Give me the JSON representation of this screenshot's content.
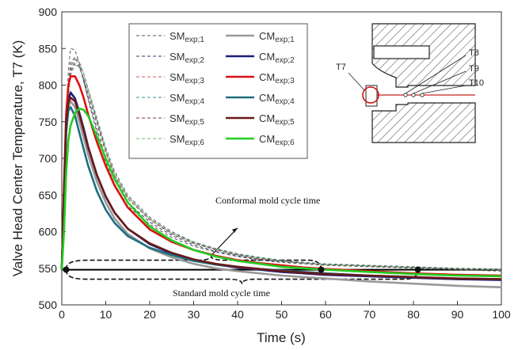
{
  "chart_data": {
    "type": "line",
    "title": "",
    "xlabel": "Time (s)",
    "ylabel": "Valve Head Center Temperature, T7 (K)",
    "xlim": [
      0,
      100
    ],
    "ylim": [
      500,
      900
    ],
    "xticks": [
      0,
      10,
      20,
      30,
      40,
      50,
      60,
      70,
      80,
      90,
      100
    ],
    "yticks": [
      500,
      550,
      600,
      650,
      700,
      750,
      800,
      850,
      900
    ],
    "grid": false,
    "legend_position": "top-left",
    "series": [
      {
        "name": "SM",
        "sub": "exp;1",
        "color": "#555555",
        "dash": true,
        "x": [
          0,
          0.5,
          1,
          1.5,
          2,
          3,
          4,
          5,
          6,
          8,
          10,
          12,
          15,
          20,
          25,
          30,
          35,
          40,
          45,
          50,
          55,
          60,
          70,
          80,
          90,
          100
        ],
        "values": [
          548,
          640,
          750,
          820,
          850,
          848,
          830,
          805,
          780,
          735,
          695,
          665,
          635,
          610,
          592,
          580,
          572,
          566,
          561,
          558,
          556,
          554,
          552,
          550,
          548,
          546
        ]
      },
      {
        "name": "SM",
        "sub": "exp;2",
        "color": "#2b3d6b",
        "dash": true,
        "x": [
          0,
          0.5,
          1,
          1.5,
          2,
          3,
          4,
          5,
          6,
          8,
          10,
          12,
          15,
          20,
          25,
          30,
          35,
          40,
          45,
          50,
          55,
          60,
          70,
          80,
          90,
          100
        ],
        "values": [
          548,
          630,
          735,
          800,
          830,
          838,
          826,
          805,
          782,
          740,
          700,
          670,
          640,
          613,
          595,
          582,
          573,
          567,
          562,
          559,
          557,
          555,
          553,
          551,
          549,
          548
        ]
      },
      {
        "name": "SM",
        "sub": "exp;3",
        "color": "#c06060",
        "dash": true,
        "x": [
          0,
          0.5,
          1,
          1.5,
          2,
          3,
          4,
          5,
          6,
          8,
          10,
          12,
          15,
          20,
          25,
          30,
          35,
          40,
          45,
          50,
          55,
          60,
          70,
          80,
          90,
          100
        ],
        "values": [
          548,
          625,
          728,
          795,
          825,
          838,
          832,
          815,
          795,
          752,
          712,
          680,
          648,
          618,
          599,
          585,
          576,
          569,
          564,
          560,
          558,
          556,
          554,
          552,
          550,
          549
        ]
      },
      {
        "name": "SM",
        "sub": "exp;4",
        "color": "#3e8e8e",
        "dash": true,
        "x": [
          0,
          0.5,
          1,
          1.5,
          2,
          3,
          4,
          5,
          6,
          8,
          10,
          12,
          15,
          20,
          25,
          30,
          35,
          40,
          45,
          50,
          55,
          60,
          70,
          80,
          90,
          100
        ],
        "values": [
          548,
          620,
          720,
          790,
          820,
          835,
          830,
          815,
          795,
          755,
          715,
          683,
          650,
          620,
          600,
          586,
          577,
          570,
          565,
          561,
          558,
          556,
          554,
          552,
          550,
          549
        ]
      },
      {
        "name": "SM",
        "sub": "exp;5",
        "color": "#7a3a4a",
        "dash": true,
        "x": [
          0,
          0.5,
          1,
          1.5,
          2,
          3,
          4,
          5,
          6,
          8,
          10,
          12,
          15,
          20,
          25,
          30,
          35,
          40,
          45,
          50,
          55,
          60,
          70,
          80,
          90,
          100
        ],
        "values": [
          548,
          622,
          722,
          790,
          818,
          830,
          824,
          808,
          788,
          748,
          708,
          676,
          645,
          616,
          597,
          584,
          575,
          568,
          563,
          560,
          557,
          555,
          553,
          551,
          549,
          548
        ]
      },
      {
        "name": "SM",
        "sub": "exp;6",
        "color": "#6ab86a",
        "dash": true,
        "x": [
          0,
          0.5,
          1,
          1.5,
          2,
          3,
          4,
          5,
          6,
          8,
          10,
          12,
          15,
          20,
          25,
          30,
          35,
          40,
          45,
          50,
          55,
          60,
          70,
          80,
          90,
          100
        ],
        "values": [
          548,
          615,
          712,
          782,
          812,
          828,
          824,
          810,
          790,
          750,
          710,
          678,
          647,
          617,
          598,
          585,
          576,
          569,
          564,
          560,
          557,
          555,
          553,
          551,
          549,
          548
        ]
      },
      {
        "name": "CM",
        "sub": "exp;1",
        "color": "#999999",
        "dash": false,
        "x": [
          0,
          0.5,
          1,
          1.5,
          2,
          3,
          4,
          5,
          6,
          8,
          10,
          12,
          15,
          20,
          25,
          30,
          35,
          40,
          45,
          50,
          55,
          60,
          70,
          80,
          90,
          100
        ],
        "values": [
          548,
          640,
          735,
          770,
          778,
          770,
          750,
          728,
          705,
          668,
          640,
          618,
          597,
          577,
          565,
          556,
          550,
          546,
          543,
          540,
          538,
          536,
          532,
          529,
          526,
          524
        ]
      },
      {
        "name": "CM",
        "sub": "exp;2",
        "color": "#1c1c7a",
        "dash": false,
        "x": [
          0,
          0.5,
          1,
          1.5,
          2,
          3,
          4,
          5,
          6,
          8,
          10,
          12,
          15,
          20,
          25,
          30,
          35,
          40,
          45,
          50,
          55,
          60,
          70,
          80,
          90,
          100
        ],
        "values": [
          548,
          650,
          745,
          780,
          790,
          782,
          762,
          740,
          716,
          677,
          648,
          626,
          604,
          583,
          570,
          561,
          555,
          551,
          548,
          545,
          543,
          541,
          539,
          537,
          535,
          534
        ]
      },
      {
        "name": "CM",
        "sub": "exp;3",
        "color": "#dd1111",
        "dash": false,
        "x": [
          0,
          0.5,
          1,
          1.5,
          2,
          3,
          4,
          5,
          6,
          8,
          10,
          12,
          15,
          20,
          25,
          30,
          35,
          40,
          45,
          50,
          55,
          60,
          70,
          80,
          90,
          100
        ],
        "values": [
          548,
          660,
          760,
          800,
          812,
          812,
          800,
          782,
          760,
          722,
          690,
          663,
          633,
          603,
          586,
          575,
          567,
          561,
          557,
          554,
          551,
          549,
          546,
          543,
          541,
          540
        ]
      },
      {
        "name": "CM",
        "sub": "exp;4",
        "color": "#1e6e80",
        "dash": false,
        "x": [
          0,
          0.5,
          1,
          1.5,
          2,
          3,
          4,
          5,
          6,
          8,
          10,
          12,
          15,
          20,
          25,
          30,
          35,
          40,
          45,
          50,
          55,
          60,
          70,
          80,
          90,
          100
        ],
        "values": [
          548,
          645,
          735,
          765,
          770,
          758,
          735,
          712,
          690,
          655,
          630,
          612,
          594,
          578,
          568,
          560,
          555,
          552,
          549,
          547,
          545,
          543,
          540,
          538,
          536,
          535
        ]
      },
      {
        "name": "CM",
        "sub": "exp;5",
        "color": "#6a1a1a",
        "dash": false,
        "x": [
          0,
          0.5,
          1,
          1.5,
          2,
          3,
          4,
          5,
          6,
          8,
          10,
          12,
          15,
          20,
          25,
          30,
          35,
          40,
          45,
          50,
          55,
          60,
          70,
          80,
          90,
          100
        ],
        "values": [
          548,
          655,
          750,
          776,
          783,
          778,
          760,
          738,
          715,
          677,
          648,
          626,
          604,
          584,
          571,
          562,
          556,
          552,
          549,
          546,
          544,
          542,
          540,
          538,
          536,
          535
        ]
      },
      {
        "name": "CM",
        "sub": "exp;6",
        "color": "#22cc22",
        "dash": false,
        "x": [
          0,
          0.5,
          1,
          1.5,
          2,
          3,
          4,
          5,
          6,
          8,
          10,
          12,
          15,
          20,
          25,
          30,
          35,
          40,
          45,
          50,
          55,
          60,
          70,
          80,
          90,
          100
        ],
        "values": [
          548,
          600,
          680,
          725,
          745,
          762,
          768,
          766,
          758,
          730,
          700,
          672,
          640,
          607,
          588,
          575,
          566,
          560,
          556,
          552,
          550,
          548,
          545,
          542,
          540,
          539
        ]
      }
    ],
    "reference_lines": [
      {
        "name": "standard-cycle-line",
        "x": [
          0,
          100
        ],
        "y": [
          548,
          548
        ],
        "color": "#000000"
      }
    ],
    "markers": [
      {
        "x": 1,
        "y": 548
      },
      {
        "x": 59,
        "y": 548
      },
      {
        "x": 81,
        "y": 548
      }
    ],
    "annotations": [
      {
        "text": "Conformal mold cycle time",
        "anchor_x": 34,
        "anchor_y": 630
      },
      {
        "text": "Standard mold cycle time",
        "anchor_x": 27,
        "anchor_y": 528
      }
    ],
    "inset_labels": [
      "T7",
      "T8",
      "T9",
      "T10"
    ]
  }
}
